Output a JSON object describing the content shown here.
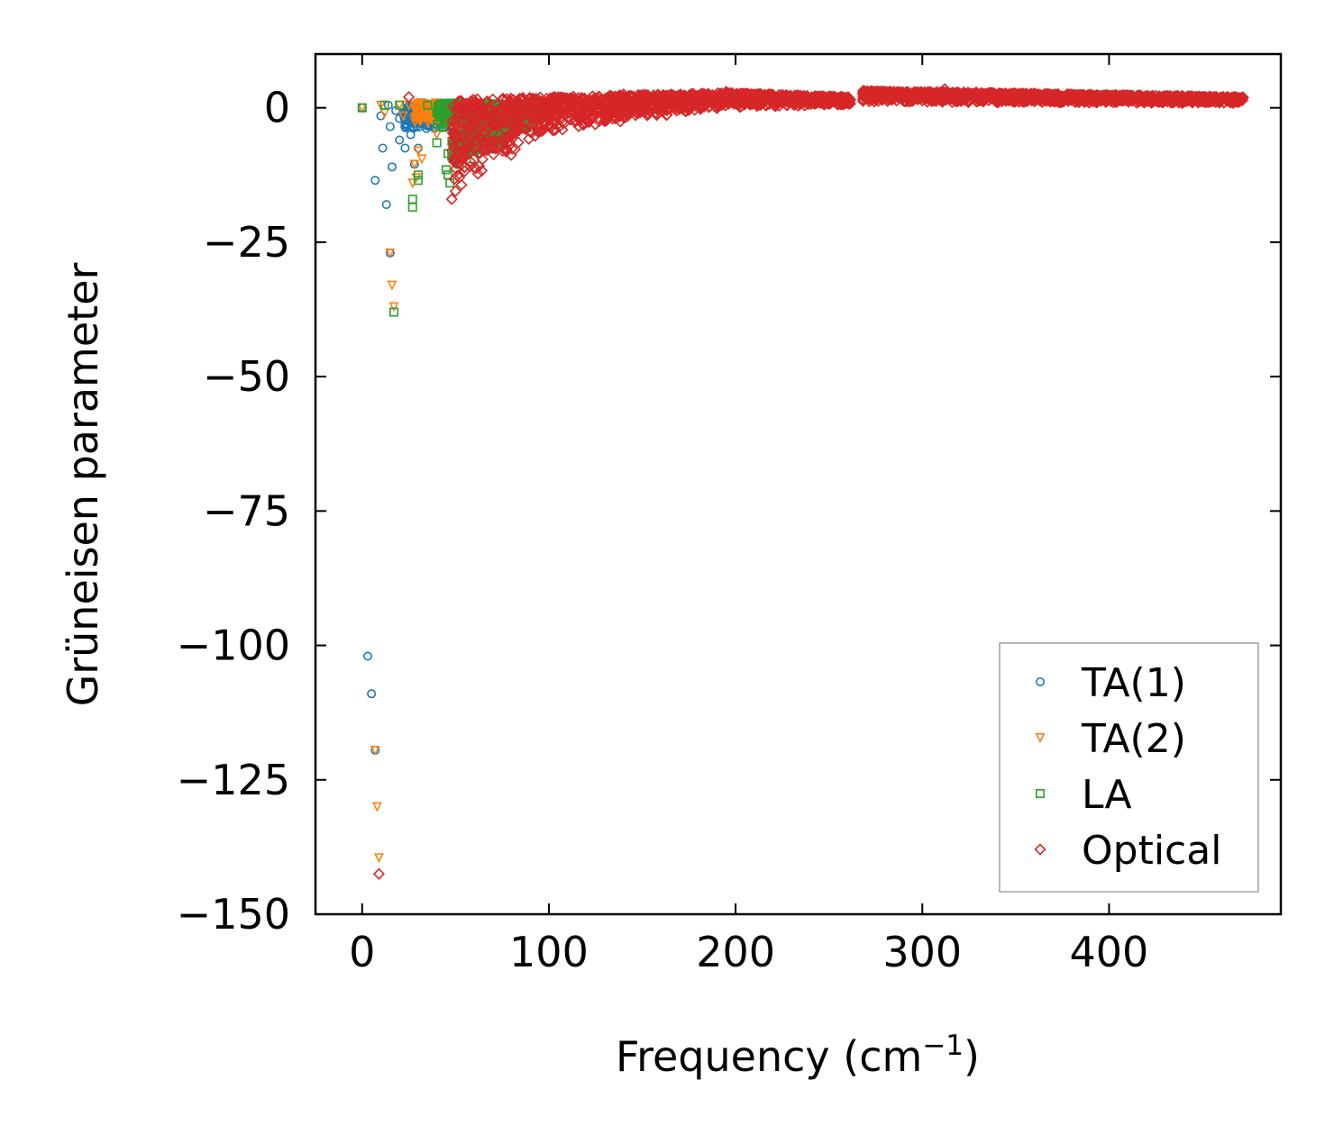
{
  "chart_data": {
    "type": "scatter",
    "title": "",
    "xlabel": "Frequency (cm",
    "xlabel_sup": "−1",
    "xlabel_close": ")",
    "ylabel": "Grüneisen parameter",
    "xlim": [
      -25,
      492
    ],
    "ylim": [
      -150,
      10
    ],
    "xticks": [
      0,
      100,
      200,
      300,
      400
    ],
    "xtick_labels": [
      "0",
      "100",
      "200",
      "300",
      "400"
    ],
    "yticks": [
      0,
      -25,
      -50,
      -75,
      -100,
      -125,
      -150
    ],
    "ytick_labels": [
      "0",
      "−25",
      "−50",
      "−75",
      "−100",
      "−125",
      "−150"
    ],
    "grid": false,
    "legend_position": "lower-right",
    "series": [
      {
        "name": "TA(1)",
        "marker": "circle",
        "color": "#1f77b4",
        "points": [
          [
            0,
            0
          ],
          [
            3,
            -102
          ],
          [
            5,
            -109
          ],
          [
            7,
            -119.5
          ],
          [
            7,
            -13.5
          ],
          [
            10,
            -1.5
          ],
          [
            11,
            -7.5
          ],
          [
            13,
            -18
          ],
          [
            14,
            0.5
          ],
          [
            15,
            -27
          ],
          [
            15,
            -3.5
          ],
          [
            16,
            -11
          ],
          [
            18,
            -0.5
          ],
          [
            20,
            -2
          ],
          [
            20,
            -6
          ],
          [
            22,
            -1
          ],
          [
            23,
            -7.5
          ],
          [
            24,
            -3
          ],
          [
            25,
            -0.5
          ],
          [
            26,
            -5
          ],
          [
            27,
            -1.5
          ],
          [
            28,
            -10.5
          ],
          [
            29,
            -3.5
          ],
          [
            30,
            -7.5
          ],
          [
            31,
            -1
          ],
          [
            33,
            -2.5
          ],
          [
            35,
            -0.5
          ],
          [
            38,
            -1.5
          ],
          [
            40,
            -2.5
          ],
          [
            42,
            -0.5
          ],
          [
            45,
            -1
          ],
          [
            48,
            -2
          ],
          [
            50,
            -0.5
          ],
          [
            55,
            -1.5
          ],
          [
            60,
            -0.5
          ],
          [
            65,
            -1.5
          ],
          [
            70,
            -0.5
          ],
          [
            75,
            -1
          ],
          [
            80,
            -1.5
          ],
          [
            85,
            -0.5
          ],
          [
            90,
            -1
          ],
          [
            95,
            -0.5
          ]
        ],
        "bands": [
          {
            "x0": 22,
            "x1": 96,
            "ylo0": -4.5,
            "ylo1": -2,
            "yhi0": 0.5,
            "yhi1": 0
          }
        ]
      },
      {
        "name": "TA(2)",
        "marker": "triangle_down",
        "color": "#ff7f0e",
        "points": [
          [
            0,
            0
          ],
          [
            8,
            -130
          ],
          [
            9,
            -139.5
          ],
          [
            7,
            -119.5
          ],
          [
            10,
            0.5
          ],
          [
            12,
            -1
          ],
          [
            15,
            -27
          ],
          [
            16,
            -33
          ],
          [
            17,
            -37
          ],
          [
            20,
            0.5
          ],
          [
            22,
            -1.5
          ],
          [
            25,
            0.5
          ],
          [
            27,
            -14
          ],
          [
            28,
            -10.5
          ],
          [
            29,
            -13
          ],
          [
            30,
            -8
          ],
          [
            31,
            -2.5
          ],
          [
            32,
            -9.5
          ],
          [
            34,
            0.5
          ],
          [
            36,
            -1.5
          ],
          [
            38,
            0.5
          ],
          [
            40,
            -5
          ],
          [
            42,
            0.5
          ],
          [
            45,
            -3
          ],
          [
            48,
            -1
          ],
          [
            50,
            -4
          ],
          [
            55,
            -5.5
          ],
          [
            58,
            -2
          ],
          [
            60,
            -5
          ],
          [
            65,
            -1.5
          ],
          [
            70,
            -4
          ],
          [
            75,
            -2
          ],
          [
            80,
            -3
          ],
          [
            85,
            -1
          ],
          [
            90,
            -2
          ],
          [
            95,
            0
          ]
        ],
        "bands": [
          {
            "x0": 28,
            "x1": 96,
            "ylo0": -3,
            "ylo1": -1,
            "yhi0": 1,
            "yhi1": 0.5
          }
        ]
      },
      {
        "name": "LA",
        "marker": "square",
        "color": "#2ca02c",
        "points": [
          [
            0,
            0
          ],
          [
            12,
            0.5
          ],
          [
            17,
            -38
          ],
          [
            20,
            0.5
          ],
          [
            27,
            -18.5
          ],
          [
            27,
            -17
          ],
          [
            30,
            -13.5
          ],
          [
            30,
            -12.5
          ],
          [
            35,
            0.5
          ],
          [
            40,
            -6.5
          ],
          [
            42,
            -3
          ],
          [
            45,
            -11.5
          ],
          [
            46,
            -12.5
          ],
          [
            47,
            -14
          ],
          [
            46,
            -8.5
          ],
          [
            48,
            -9
          ],
          [
            50,
            -6
          ],
          [
            52,
            -10.5
          ],
          [
            55,
            -8
          ],
          [
            58,
            -4.5
          ],
          [
            60,
            -9.5
          ],
          [
            62,
            -6
          ],
          [
            65,
            -7
          ],
          [
            68,
            -3.5
          ],
          [
            70,
            -6.5
          ],
          [
            72,
            -4
          ],
          [
            75,
            -5.5
          ],
          [
            78,
            -2.5
          ],
          [
            80,
            -4.5
          ],
          [
            83,
            -3
          ],
          [
            86,
            -3.5
          ],
          [
            90,
            -2
          ],
          [
            93,
            -1.5
          ],
          [
            96,
            -1
          ],
          [
            99,
            0.5
          ]
        ],
        "bands": [
          {
            "x0": 40,
            "x1": 99,
            "ylo0": -4,
            "ylo1": -1,
            "yhi0": 1,
            "yhi1": 0.5
          },
          {
            "x0": 48,
            "x1": 90,
            "ylo0": -11,
            "ylo1": -3.5,
            "yhi0": -5,
            "yhi1": -1.5
          }
        ]
      },
      {
        "name": "Optical",
        "marker": "diamond",
        "color": "#d62728",
        "points": [
          [
            9,
            -142.5
          ],
          [
            25,
            2
          ],
          [
            48,
            -17
          ],
          [
            50,
            -15.5
          ],
          [
            52,
            -13
          ],
          [
            55,
            -11
          ],
          [
            58,
            -10
          ],
          [
            62,
            -8.5
          ],
          [
            65,
            -8
          ],
          [
            70,
            -7.5
          ],
          [
            90,
            -4.5
          ],
          [
            100,
            -3.5
          ],
          [
            120,
            -2
          ],
          [
            140,
            2.5
          ],
          [
            195,
            3
          ],
          [
            270,
            2.5
          ],
          [
            275,
            3
          ],
          [
            312,
            3.5
          ],
          [
            470,
            1.5
          ]
        ],
        "bands": [
          {
            "x0": 48,
            "x1": 100,
            "ylo0": -16,
            "ylo1": -4.5,
            "yhi0": 1.5,
            "yhi1": 2
          },
          {
            "x0": 100,
            "x1": 195,
            "ylo0": -4.5,
            "ylo1": 0,
            "yhi0": 2,
            "yhi1": 2.8
          },
          {
            "x0": 195,
            "x1": 262,
            "ylo0": 0,
            "ylo1": 0.5,
            "yhi0": 2.8,
            "yhi1": 2
          },
          {
            "x0": 268,
            "x1": 472,
            "ylo0": 1,
            "ylo1": 0.8,
            "yhi0": 3.2,
            "yhi1": 2
          }
        ]
      }
    ]
  }
}
